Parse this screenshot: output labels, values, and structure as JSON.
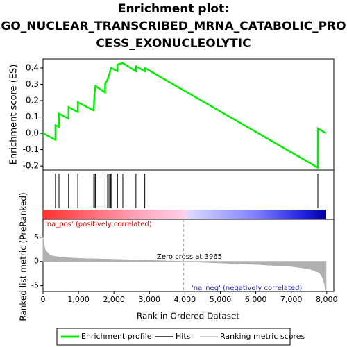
{
  "chart_data": {
    "type": "line",
    "title": [
      "Enrichment plot:",
      "GO_NUCLEAR_TRANSCRIBED_MRNA_CATABOLIC_PRO",
      "CESS_EXONUCLEOLYTIC"
    ],
    "ylabel": "Enrichment score (ES)",
    "y2label": "Ranked list metric (PreRanked)",
    "xlabel": "Rank in Ordered Dataset",
    "xlim": [
      0,
      8200
    ],
    "xticks": [
      0,
      {
        "value": 1000,
        "label": "1,000"
      },
      {
        "value": 2000,
        "label": "2,000"
      },
      {
        "value": 3000,
        "label": "3,000"
      },
      {
        "value": 4000,
        "label": "4,000"
      },
      {
        "value": 5000,
        "label": "5,000"
      },
      {
        "value": 6000,
        "label": "6,000"
      },
      {
        "value": 7000,
        "label": "7,000"
      },
      {
        "value": 8000,
        "label": "8,000"
      }
    ],
    "ylim": [
      -0.225,
      0.455
    ],
    "yticks": [
      -0.2,
      -0.1,
      {
        "value": 0,
        "label": "0.0"
      },
      0.1,
      0.2,
      0.3,
      0.4
    ],
    "series": [
      {
        "name": "Enrichment profile",
        "color": "#00ee00",
        "x": [
          0,
          350,
          351,
          450,
          451,
          720,
          721,
          980,
          981,
          1430,
          1450,
          1480,
          1750,
          1751,
          1820,
          1880,
          1920,
          2100,
          2101,
          2250,
          2620,
          2621,
          2870,
          2871,
          7750,
          7751,
          7980
        ],
        "values": [
          0,
          -0.04,
          0.05,
          0.04,
          0.12,
          0.09,
          0.16,
          0.13,
          0.19,
          0.14,
          0.24,
          0.29,
          0.25,
          0.3,
          0.33,
          0.37,
          0.4,
          0.38,
          0.42,
          0.43,
          0.38,
          0.41,
          0.38,
          0.4,
          -0.21,
          0.03,
          0.0
        ]
      }
    ],
    "hits": {
      "name": "Hits",
      "color": "#000000",
      "x": [
        350,
        450,
        720,
        980,
        1430,
        1450,
        1480,
        1750,
        1820,
        1860,
        1900,
        1920,
        2100,
        2250,
        2620,
        2870,
        7750
      ]
    },
    "metric": {
      "name": "Ranking metric scores",
      "color": "#b0b0b0",
      "x": [
        0,
        50,
        200,
        500,
        1000,
        2000,
        3000,
        3965,
        5000,
        6000,
        7000,
        7500,
        7800,
        7900,
        7980
      ],
      "values": [
        5.0,
        2.5,
        1.2,
        0.8,
        0.6,
        0.4,
        0.2,
        0,
        -0.3,
        -0.6,
        -1.0,
        -1.5,
        -2.3,
        -3.5,
        -6.0
      ],
      "ylim": [
        -6.2,
        8.7
      ],
      "yticks": [
        5,
        0,
        -5
      ]
    },
    "zero_cross": 3965,
    "annotations": [
      "'na_pos' (positively correlated)",
      "Zero cross at 3965",
      "'na_neg' (negatively correlated)"
    ]
  }
}
